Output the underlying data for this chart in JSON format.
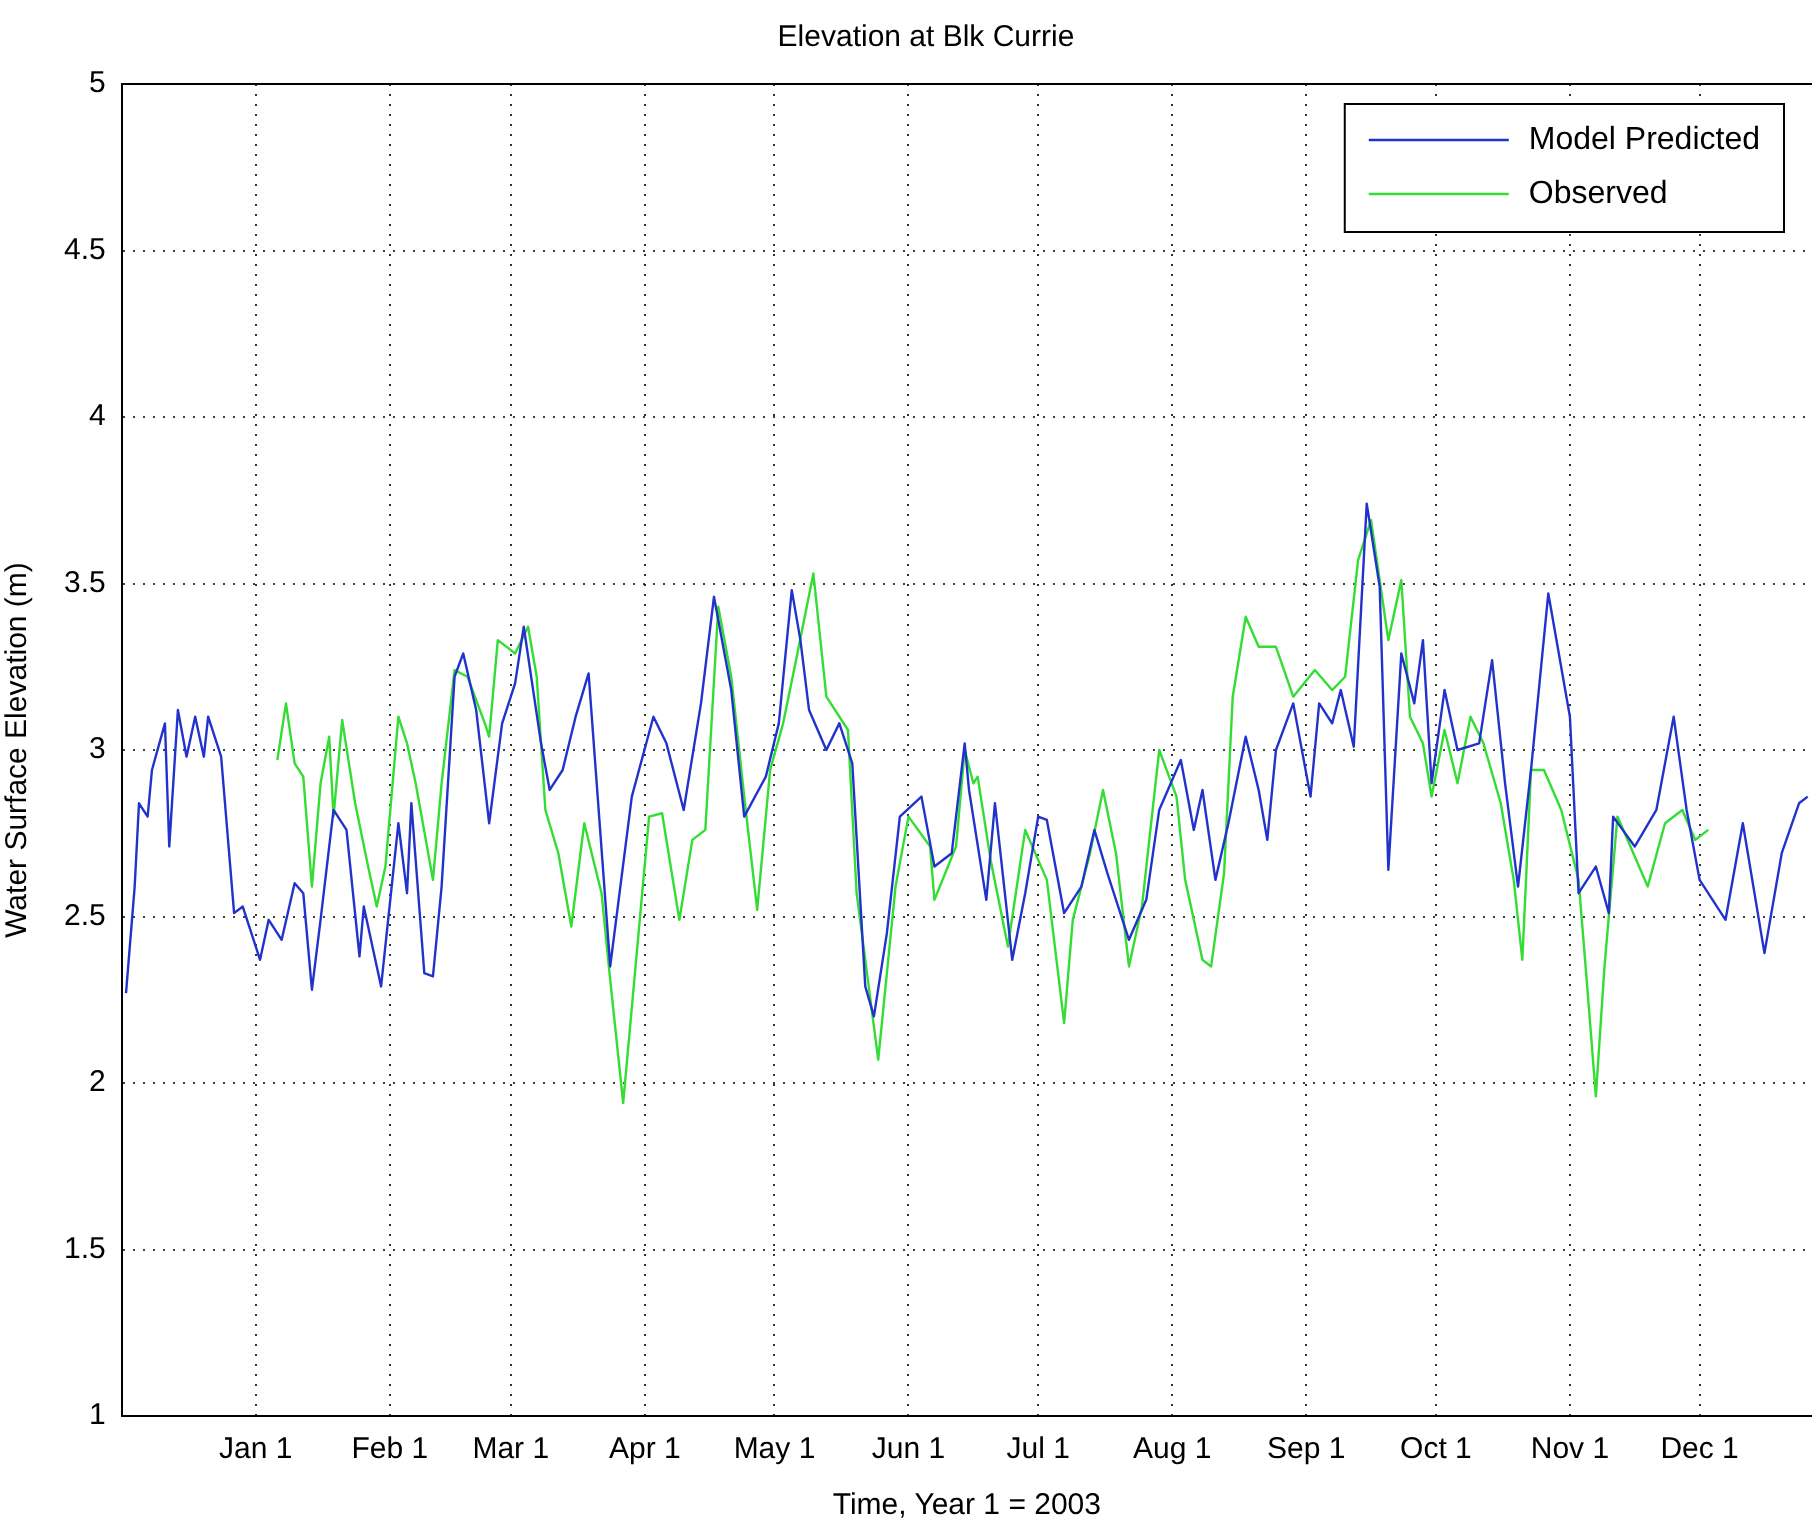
{
  "chart_data": {
    "type": "line",
    "title": "Elevation at Blk Currie",
    "xlabel": "Time, Year 1 = 2003",
    "ylabel": "Water Surface Elevation (m)",
    "xlim": [
      "2002-12-01",
      "2003-12-27"
    ],
    "ylim": [
      1,
      5
    ],
    "xticks": [
      {
        "value": "2003-01-01",
        "label": "Jan 1"
      },
      {
        "value": "2003-02-01",
        "label": "Feb 1"
      },
      {
        "value": "2003-03-01",
        "label": "Mar 1"
      },
      {
        "value": "2003-04-01",
        "label": "Apr 1"
      },
      {
        "value": "2003-05-01",
        "label": "May 1"
      },
      {
        "value": "2003-06-01",
        "label": "Jun 1"
      },
      {
        "value": "2003-07-01",
        "label": "Jul 1"
      },
      {
        "value": "2003-08-01",
        "label": "Aug 1"
      },
      {
        "value": "2003-09-01",
        "label": "Sep 1"
      },
      {
        "value": "2003-10-01",
        "label": "Oct 1"
      },
      {
        "value": "2003-11-01",
        "label": "Nov 1"
      },
      {
        "value": "2003-12-01",
        "label": "Dec 1"
      }
    ],
    "yticks": [
      1,
      1.5,
      2,
      2.5,
      3,
      3.5,
      4,
      4.5,
      5
    ],
    "grid": true,
    "legend": "top right",
    "marker": "none",
    "line_style": "solid",
    "series": [
      {
        "name": "Model Predicted",
        "color": "#2233cc",
        "x": [
          "2002-12-02",
          "2002-12-04",
          "2002-12-05",
          "2002-12-07",
          "2002-12-08",
          "2002-12-11",
          "2002-12-12",
          "2002-12-14",
          "2002-12-16",
          "2002-12-18",
          "2002-12-20",
          "2002-12-21",
          "2002-12-24",
          "2002-12-27",
          "2002-12-29",
          "2003-01-02",
          "2003-01-04",
          "2003-01-07",
          "2003-01-10",
          "2003-01-12",
          "2003-01-14",
          "2003-01-16",
          "2003-01-19",
          "2003-01-22",
          "2003-01-25",
          "2003-01-26",
          "2003-01-30",
          "2003-02-03",
          "2003-02-05",
          "2003-02-06",
          "2003-02-09",
          "2003-02-11",
          "2003-02-13",
          "2003-02-16",
          "2003-02-18",
          "2003-02-21",
          "2003-02-24",
          "2003-02-27",
          "2003-03-02",
          "2003-03-04",
          "2003-03-08",
          "2003-03-10",
          "2003-03-13",
          "2003-03-16",
          "2003-03-19",
          "2003-03-24",
          "2003-03-29",
          "2003-04-03",
          "2003-04-06",
          "2003-04-10",
          "2003-04-14",
          "2003-04-17",
          "2003-04-21",
          "2003-04-24",
          "2003-04-29",
          "2003-05-02",
          "2003-05-05",
          "2003-05-07",
          "2003-05-09",
          "2003-05-13",
          "2003-05-16",
          "2003-05-19",
          "2003-05-22",
          "2003-05-24",
          "2003-05-27",
          "2003-05-30",
          "2003-06-04",
          "2003-06-07",
          "2003-06-11",
          "2003-06-14",
          "2003-06-15",
          "2003-06-19",
          "2003-06-21",
          "2003-06-25",
          "2003-06-28",
          "2003-07-01",
          "2003-07-03",
          "2003-07-07",
          "2003-07-11",
          "2003-07-14",
          "2003-07-17",
          "2003-07-22",
          "2003-07-26",
          "2003-07-29",
          "2003-08-03",
          "2003-08-06",
          "2003-08-08",
          "2003-08-11",
          "2003-08-14",
          "2003-08-18",
          "2003-08-21",
          "2003-08-23",
          "2003-08-25",
          "2003-08-29",
          "2003-09-02",
          "2003-09-04",
          "2003-09-07",
          "2003-09-09",
          "2003-09-12",
          "2003-09-15",
          "2003-09-18",
          "2003-09-20",
          "2003-09-23",
          "2003-09-26",
          "2003-09-28",
          "2003-09-30",
          "2003-10-03",
          "2003-10-06",
          "2003-10-11",
          "2003-10-14",
          "2003-10-17",
          "2003-10-20",
          "2003-10-23",
          "2003-10-27",
          "2003-11-01",
          "2003-11-03",
          "2003-11-07",
          "2003-11-10",
          "2003-11-11",
          "2003-11-16",
          "2003-11-21",
          "2003-11-25",
          "2003-11-28",
          "2003-12-01",
          "2003-12-07",
          "2003-12-11",
          "2003-12-16",
          "2003-12-20",
          "2003-12-24",
          "2003-12-26"
        ],
        "values": [
          2.27,
          2.59,
          2.84,
          2.8,
          2.94,
          3.08,
          2.71,
          3.12,
          2.98,
          3.1,
          2.98,
          3.1,
          2.98,
          2.51,
          2.53,
          2.37,
          2.49,
          2.43,
          2.6,
          2.57,
          2.28,
          2.49,
          2.82,
          2.76,
          2.38,
          2.53,
          2.29,
          2.78,
          2.57,
          2.84,
          2.33,
          2.32,
          2.59,
          3.22,
          3.29,
          3.12,
          2.78,
          3.08,
          3.2,
          3.37,
          3.02,
          2.88,
          2.94,
          3.1,
          3.23,
          2.35,
          2.86,
          3.1,
          3.02,
          2.82,
          3.14,
          3.46,
          3.18,
          2.8,
          2.92,
          3.08,
          3.48,
          3.33,
          3.12,
          3.0,
          3.08,
          2.96,
          2.29,
          2.2,
          2.45,
          2.8,
          2.86,
          2.65,
          2.69,
          3.02,
          2.88,
          2.55,
          2.84,
          2.37,
          2.57,
          2.8,
          2.79,
          2.51,
          2.59,
          2.76,
          2.63,
          2.43,
          2.55,
          2.82,
          2.97,
          2.76,
          2.88,
          2.61,
          2.78,
          3.04,
          2.88,
          2.73,
          3.0,
          3.14,
          2.86,
          3.14,
          3.08,
          3.18,
          3.01,
          3.74,
          3.49,
          2.64,
          3.29,
          3.14,
          3.33,
          2.9,
          3.18,
          3.0,
          3.02,
          3.27,
          2.9,
          2.59,
          2.94,
          3.47,
          3.1,
          2.57,
          2.65,
          2.51,
          2.8,
          2.71,
          2.82,
          3.1,
          2.82,
          2.61,
          2.49,
          2.78,
          2.39,
          2.69,
          2.84,
          2.86
        ]
      },
      {
        "name": "Observed",
        "color": "#33dd33",
        "x": [
          "2003-01-06",
          "2003-01-08",
          "2003-01-10",
          "2003-01-12",
          "2003-01-14",
          "2003-01-16",
          "2003-01-18",
          "2003-01-19",
          "2003-01-21",
          "2003-01-24",
          "2003-01-27",
          "2003-01-29",
          "2003-01-31",
          "2003-02-03",
          "2003-02-05",
          "2003-02-07",
          "2003-02-11",
          "2003-02-13",
          "2003-02-16",
          "2003-02-19",
          "2003-02-23",
          "2003-02-24",
          "2003-02-26",
          "2003-03-02",
          "2003-03-05",
          "2003-03-07",
          "2003-03-09",
          "2003-03-12",
          "2003-03-15",
          "2003-03-18",
          "2003-03-22",
          "2003-03-24",
          "2003-03-27",
          "2003-03-30",
          "2003-04-02",
          "2003-04-05",
          "2003-04-09",
          "2003-04-12",
          "2003-04-15",
          "2003-04-18",
          "2003-04-21",
          "2003-04-24",
          "2003-04-27",
          "2003-04-30",
          "2003-05-03",
          "2003-05-06",
          "2003-05-10",
          "2003-05-13",
          "2003-05-18",
          "2003-05-20",
          "2003-05-25",
          "2003-05-29",
          "2003-06-01",
          "2003-06-06",
          "2003-06-07",
          "2003-06-12",
          "2003-06-14",
          "2003-06-16",
          "2003-06-17",
          "2003-06-20",
          "2003-06-24",
          "2003-06-28",
          "2003-07-03",
          "2003-07-07",
          "2003-07-09",
          "2003-07-13",
          "2003-07-16",
          "2003-07-19",
          "2003-07-22",
          "2003-07-25",
          "2003-07-29",
          "2003-08-02",
          "2003-08-04",
          "2003-08-08",
          "2003-08-10",
          "2003-08-13",
          "2003-08-15",
          "2003-08-18",
          "2003-08-21",
          "2003-08-25",
          "2003-08-29",
          "2003-09-03",
          "2003-09-07",
          "2003-09-10",
          "2003-09-13",
          "2003-09-16",
          "2003-09-20",
          "2003-09-23",
          "2003-09-25",
          "2003-09-28",
          "2003-09-30",
          "2003-10-03",
          "2003-10-06",
          "2003-10-09",
          "2003-10-12",
          "2003-10-16",
          "2003-10-19",
          "2003-10-21",
          "2003-10-23",
          "2003-10-26",
          "2003-10-30",
          "2003-11-03",
          "2003-11-05",
          "2003-11-07",
          "2003-11-09",
          "2003-11-12",
          "2003-11-15",
          "2003-11-19",
          "2003-11-23",
          "2003-11-27",
          "2003-11-30",
          "2003-12-03"
        ],
        "values": [
          2.97,
          3.14,
          2.96,
          2.92,
          2.59,
          2.9,
          3.04,
          2.8,
          3.09,
          2.84,
          2.65,
          2.53,
          2.65,
          3.1,
          3.02,
          2.9,
          2.61,
          2.9,
          3.24,
          3.22,
          3.08,
          3.04,
          3.33,
          3.29,
          3.37,
          3.22,
          2.82,
          2.69,
          2.47,
          2.78,
          2.57,
          2.31,
          1.94,
          2.37,
          2.8,
          2.81,
          2.49,
          2.73,
          2.76,
          3.43,
          3.22,
          2.86,
          2.52,
          2.94,
          3.08,
          3.27,
          3.53,
          3.16,
          3.06,
          2.57,
          2.07,
          2.59,
          2.8,
          2.71,
          2.55,
          2.71,
          3.0,
          2.9,
          2.92,
          2.67,
          2.41,
          2.76,
          2.61,
          2.18,
          2.49,
          2.69,
          2.88,
          2.69,
          2.35,
          2.53,
          3.0,
          2.86,
          2.61,
          2.37,
          2.35,
          2.63,
          3.16,
          3.4,
          3.31,
          3.31,
          3.16,
          3.24,
          3.18,
          3.22,
          3.57,
          3.69,
          3.33,
          3.51,
          3.1,
          3.02,
          2.86,
          3.06,
          2.9,
          3.1,
          3.02,
          2.84,
          2.61,
          2.37,
          2.94,
          2.94,
          2.82,
          2.61,
          2.29,
          1.96,
          2.35,
          2.8,
          2.71,
          2.59,
          2.78,
          2.82,
          2.73,
          2.76
        ]
      }
    ]
  }
}
